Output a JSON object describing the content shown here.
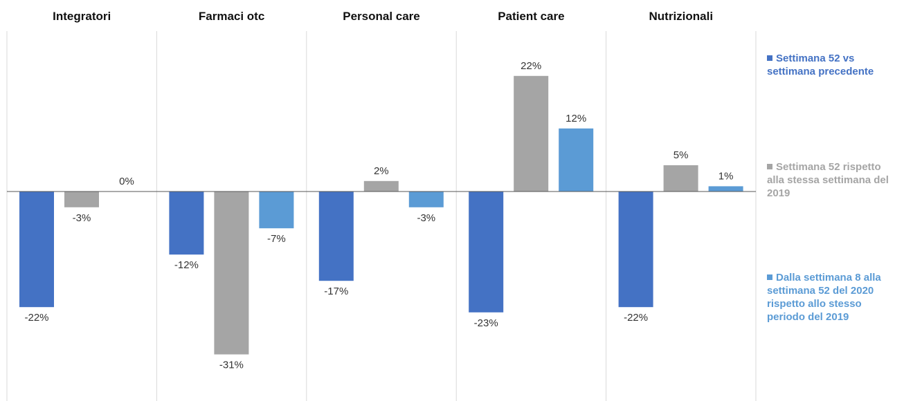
{
  "chart_data": {
    "type": "bar",
    "categories": [
      "Integratori",
      "Farmaci otc",
      "Personal care",
      "Patient care",
      "Nutrizionali"
    ],
    "series": [
      {
        "name": "Settimana 52 vs settimana precedente",
        "color": "#4472c4",
        "values": [
          -22,
          -12,
          -17,
          -23,
          -22
        ],
        "value_labels": [
          "-22%",
          "-12%",
          "-17%",
          "-23%",
          "-22%"
        ]
      },
      {
        "name": "Settimana 52  rispetto alla stessa settimana del 2019",
        "color": "#a5a5a5",
        "values": [
          -3,
          -31,
          2,
          22,
          5
        ],
        "value_labels": [
          "-3%",
          "-31%",
          "2%",
          "22%",
          "5%"
        ]
      },
      {
        "name": "Dalla settimana 8 alla settimana 52 del 2020 rispetto allo stesso periodo del 2019",
        "color": "#5b9bd5",
        "values": [
          0,
          -7,
          -3,
          12,
          1
        ],
        "value_labels": [
          "0%",
          "-7%",
          "-3%",
          "12%",
          "1%"
        ]
      }
    ],
    "ylim": [
      -39,
      30
    ]
  }
}
